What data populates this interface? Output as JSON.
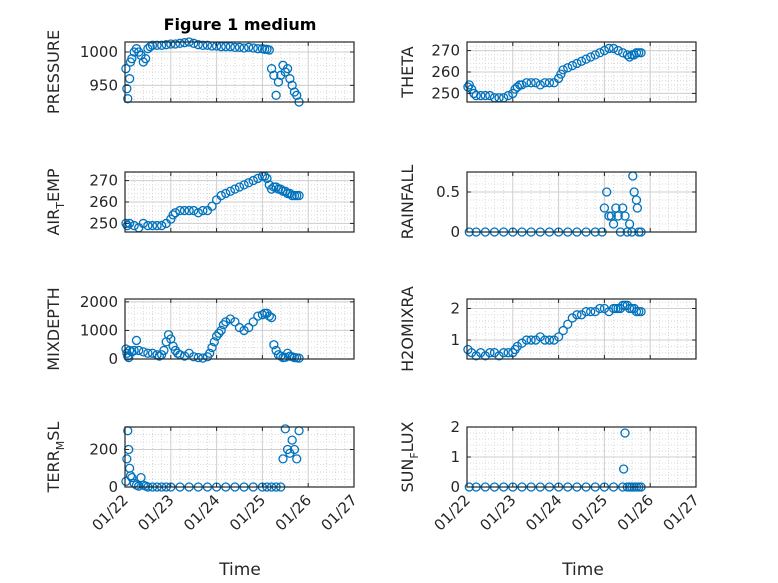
{
  "figure": {
    "title": "Figure 1 medium",
    "marker_color": "#0072bd"
  },
  "chart_data": [
    {
      "type": "scatter",
      "ylabel": "PRESSURE",
      "ylim": [
        925,
        1015
      ],
      "yticks": [
        950,
        1000
      ],
      "ytick_labels": [
        "950",
        "1000"
      ],
      "xlim": [
        0,
        5
      ],
      "x": [
        0.02,
        0.04,
        0.06,
        0.1,
        0.12,
        0.15,
        0.2,
        0.25,
        0.3,
        0.35,
        0.4,
        0.45,
        0.5,
        0.55,
        0.6,
        0.7,
        0.8,
        0.9,
        1.0,
        1.1,
        1.2,
        1.3,
        1.4,
        1.5,
        1.6,
        1.7,
        1.8,
        1.9,
        2.0,
        2.1,
        2.2,
        2.3,
        2.4,
        2.5,
        2.6,
        2.7,
        2.8,
        2.9,
        3.0,
        3.05,
        3.1,
        3.15,
        3.2,
        3.25,
        3.3,
        3.35,
        3.4,
        3.45,
        3.5,
        3.55,
        3.6,
        3.65,
        3.7,
        3.75,
        3.8
      ],
      "y": [
        975,
        945,
        930,
        960,
        985,
        990,
        1000,
        1005,
        1000,
        995,
        985,
        990,
        1005,
        1008,
        1010,
        1010,
        1010,
        1011,
        1012,
        1012,
        1013,
        1014,
        1015,
        1013,
        1011,
        1010,
        1010,
        1009,
        1009,
        1008,
        1008,
        1008,
        1007,
        1007,
        1006,
        1007,
        1006,
        1005,
        1005,
        1004,
        1004,
        1003,
        975,
        965,
        935,
        955,
        965,
        980,
        970,
        975,
        960,
        950,
        940,
        935,
        925
      ]
    },
    {
      "type": "scatter",
      "ylabel": "THETA",
      "ylim": [
        246,
        274
      ],
      "yticks": [
        250,
        260,
        270
      ],
      "ytick_labels": [
        "250",
        "260",
        "270"
      ],
      "xlim": [
        0,
        5
      ],
      "x": [
        0.02,
        0.05,
        0.1,
        0.15,
        0.2,
        0.3,
        0.4,
        0.5,
        0.6,
        0.7,
        0.8,
        0.9,
        1.0,
        1.05,
        1.1,
        1.15,
        1.2,
        1.3,
        1.4,
        1.5,
        1.6,
        1.7,
        1.8,
        1.9,
        2.0,
        2.05,
        2.1,
        2.2,
        2.3,
        2.4,
        2.5,
        2.6,
        2.7,
        2.8,
        2.9,
        3.0,
        3.1,
        3.2,
        3.3,
        3.4,
        3.5,
        3.55,
        3.6,
        3.65,
        3.7,
        3.75,
        3.8
      ],
      "y": [
        253,
        254,
        252,
        250,
        249,
        249,
        249,
        249,
        248,
        248,
        248,
        249,
        250,
        252,
        253,
        254,
        254,
        255,
        255,
        255,
        254,
        255,
        255,
        255,
        257,
        259,
        261,
        262,
        263,
        264,
        265,
        266,
        267,
        268,
        269,
        270,
        271,
        271,
        270,
        269,
        268,
        267,
        268,
        268,
        269,
        269,
        269
      ]
    },
    {
      "type": "scatter",
      "ylabel": "AIR_TEMP",
      "ylim": [
        246,
        274
      ],
      "yticks": [
        250,
        260,
        270
      ],
      "ytick_labels": [
        "250",
        "260",
        "270"
      ],
      "xlim": [
        0,
        5
      ],
      "x": [
        0.02,
        0.05,
        0.1,
        0.2,
        0.3,
        0.4,
        0.5,
        0.6,
        0.7,
        0.8,
        0.9,
        1.0,
        1.05,
        1.1,
        1.2,
        1.3,
        1.4,
        1.5,
        1.6,
        1.7,
        1.8,
        1.9,
        2.0,
        2.1,
        2.2,
        2.3,
        2.4,
        2.5,
        2.6,
        2.7,
        2.8,
        2.9,
        3.0,
        3.05,
        3.1,
        3.15,
        3.2,
        3.25,
        3.3,
        3.35,
        3.4,
        3.45,
        3.5,
        3.55,
        3.6,
        3.65,
        3.7,
        3.75,
        3.8
      ],
      "y": [
        250,
        249,
        250,
        249,
        248,
        250,
        249,
        249,
        249,
        249,
        250,
        252,
        254,
        255,
        256,
        256,
        256,
        256,
        255,
        256,
        256,
        258,
        261,
        263,
        264,
        265,
        266,
        267,
        268,
        269,
        270,
        271,
        272,
        272,
        271,
        268,
        266,
        267,
        267,
        266,
        266,
        265,
        265,
        264,
        264,
        263,
        263,
        263,
        263
      ]
    },
    {
      "type": "scatter",
      "ylabel": "RAINFALL",
      "ylim": [
        0,
        0.75
      ],
      "yticks": [
        0,
        0.5
      ],
      "ytick_labels": [
        "0",
        "0.5"
      ],
      "xlim": [
        0,
        5
      ],
      "x": [
        0.05,
        0.2,
        0.4,
        0.6,
        0.8,
        1.0,
        1.2,
        1.4,
        1.6,
        1.8,
        2.0,
        2.2,
        2.4,
        2.6,
        2.8,
        2.95,
        3.0,
        3.05,
        3.1,
        3.15,
        3.2,
        3.25,
        3.3,
        3.35,
        3.4,
        3.45,
        3.5,
        3.55,
        3.6,
        3.62,
        3.65,
        3.7,
        3.72,
        3.75,
        3.8
      ],
      "y": [
        0,
        0,
        0,
        0,
        0,
        0,
        0,
        0,
        0,
        0,
        0,
        0,
        0,
        0,
        0,
        0,
        0.3,
        0.5,
        0.2,
        0.2,
        0.1,
        0.3,
        0.2,
        0,
        0.3,
        0.2,
        0,
        0.1,
        0,
        0.7,
        0.5,
        0.4,
        0.3,
        0,
        0
      ]
    },
    {
      "type": "scatter",
      "ylabel": "MIXDEPTH",
      "ylim": [
        0,
        2100
      ],
      "yticks": [
        0,
        1000,
        2000
      ],
      "ytick_labels": [
        "0",
        "1000",
        "2000"
      ],
      "xlim": [
        0,
        5
      ],
      "x": [
        0.02,
        0.04,
        0.06,
        0.08,
        0.1,
        0.15,
        0.2,
        0.25,
        0.3,
        0.4,
        0.5,
        0.6,
        0.7,
        0.75,
        0.8,
        0.85,
        0.9,
        0.95,
        1.0,
        1.05,
        1.1,
        1.15,
        1.2,
        1.3,
        1.4,
        1.5,
        1.6,
        1.7,
        1.8,
        1.85,
        1.9,
        1.95,
        2.0,
        2.05,
        2.1,
        2.15,
        2.2,
        2.3,
        2.4,
        2.5,
        2.6,
        2.7,
        2.8,
        2.9,
        3.0,
        3.05,
        3.1,
        3.15,
        3.2,
        3.25,
        3.3,
        3.35,
        3.4,
        3.45,
        3.5,
        3.55,
        3.6,
        3.65,
        3.7,
        3.75,
        3.8
      ],
      "y": [
        350,
        200,
        100,
        50,
        300,
        250,
        300,
        650,
        300,
        250,
        200,
        200,
        150,
        100,
        150,
        300,
        600,
        850,
        700,
        450,
        300,
        200,
        150,
        100,
        200,
        80,
        50,
        30,
        80,
        200,
        400,
        600,
        800,
        900,
        1000,
        1200,
        1300,
        1400,
        1300,
        1100,
        1000,
        1100,
        1300,
        1500,
        1550,
        1600,
        1600,
        1500,
        1450,
        500,
        300,
        150,
        100,
        50,
        60,
        200,
        100,
        80,
        50,
        40,
        30
      ]
    },
    {
      "type": "scatter",
      "ylabel": "H2OMIXRA",
      "ylim": [
        0.4,
        2.3
      ],
      "yticks": [
        1,
        2
      ],
      "ytick_labels": [
        "1",
        "2"
      ],
      "xlim": [
        0,
        5
      ],
      "x": [
        0.02,
        0.1,
        0.2,
        0.3,
        0.4,
        0.5,
        0.6,
        0.7,
        0.8,
        0.9,
        1.0,
        1.05,
        1.1,
        1.2,
        1.3,
        1.4,
        1.5,
        1.6,
        1.7,
        1.8,
        1.9,
        2.0,
        2.1,
        2.2,
        2.3,
        2.4,
        2.5,
        2.6,
        2.7,
        2.8,
        2.9,
        3.0,
        3.1,
        3.2,
        3.25,
        3.3,
        3.35,
        3.4,
        3.45,
        3.5,
        3.55,
        3.6,
        3.65,
        3.7,
        3.75,
        3.8
      ],
      "y": [
        0.7,
        0.6,
        0.5,
        0.6,
        0.5,
        0.6,
        0.6,
        0.5,
        0.6,
        0.6,
        0.6,
        0.7,
        0.8,
        0.9,
        1.0,
        1.0,
        1.0,
        1.1,
        1.0,
        1.0,
        1.0,
        1.1,
        1.3,
        1.5,
        1.7,
        1.8,
        1.8,
        1.9,
        1.9,
        1.9,
        2.0,
        2.0,
        1.9,
        2.0,
        2.0,
        2.0,
        2.0,
        2.1,
        2.1,
        2.1,
        2.0,
        2.0,
        2.0,
        1.9,
        1.9,
        1.9
      ]
    },
    {
      "type": "scatter",
      "ylabel": "TERR_MSL",
      "ylim": [
        0,
        320
      ],
      "yticks": [
        0,
        200
      ],
      "ytick_labels": [
        "0",
        "200"
      ],
      "xlim": [
        0,
        5
      ],
      "x": [
        0.02,
        0.04,
        0.06,
        0.08,
        0.1,
        0.12,
        0.15,
        0.2,
        0.25,
        0.3,
        0.35,
        0.4,
        0.45,
        0.5,
        0.6,
        0.7,
        0.8,
        0.9,
        1.0,
        1.2,
        1.4,
        1.6,
        1.8,
        2.0,
        2.2,
        2.4,
        2.6,
        2.8,
        3.0,
        3.1,
        3.2,
        3.3,
        3.4,
        3.45,
        3.5,
        3.55,
        3.6,
        3.65,
        3.7,
        3.75,
        3.8
      ],
      "y": [
        30,
        150,
        300,
        200,
        100,
        60,
        50,
        20,
        10,
        5,
        50,
        10,
        5,
        0,
        0,
        0,
        0,
        0,
        0,
        0,
        0,
        0,
        0,
        0,
        0,
        0,
        0,
        0,
        0,
        0,
        0,
        0,
        0,
        150,
        310,
        200,
        180,
        250,
        200,
        150,
        300
      ]
    },
    {
      "type": "scatter",
      "ylabel": "SUN_FLUX",
      "ylim": [
        0,
        2
      ],
      "yticks": [
        0,
        1,
        2
      ],
      "ytick_labels": [
        "0",
        "1",
        "2"
      ],
      "xlim": [
        0,
        5
      ],
      "x": [
        0.05,
        0.2,
        0.4,
        0.6,
        0.8,
        1.0,
        1.2,
        1.4,
        1.6,
        1.8,
        2.0,
        2.2,
        2.4,
        2.6,
        2.8,
        3.0,
        3.2,
        3.4,
        3.42,
        3.45,
        3.5,
        3.55,
        3.6,
        3.65,
        3.7,
        3.75,
        3.8
      ],
      "y": [
        0,
        0,
        0,
        0,
        0,
        0,
        0,
        0,
        0,
        0,
        0,
        0,
        0,
        0,
        0,
        0,
        0,
        0,
        0.6,
        1.8,
        0,
        0,
        0,
        0,
        0,
        0,
        0
      ]
    }
  ],
  "panels": [
    {
      "ylabel_main": "PRESSURE",
      "ylabel_sub": "",
      "ylabel_tail": ""
    },
    {
      "ylabel_main": "THETA",
      "ylabel_sub": "",
      "ylabel_tail": ""
    },
    {
      "ylabel_main": "AIR",
      "ylabel_sub": "T",
      "ylabel_tail": "EMP"
    },
    {
      "ylabel_main": "RAINFALL",
      "ylabel_sub": "",
      "ylabel_tail": ""
    },
    {
      "ylabel_main": "MIXDEPTH",
      "ylabel_sub": "",
      "ylabel_tail": ""
    },
    {
      "ylabel_main": "H2OMIXRA",
      "ylabel_sub": "",
      "ylabel_tail": ""
    },
    {
      "ylabel_main": "TERR",
      "ylabel_sub": "M",
      "ylabel_tail": "SL"
    },
    {
      "ylabel_main": "SUN",
      "ylabel_sub": "F",
      "ylabel_tail": "LUX"
    }
  ],
  "x_axis": {
    "tick_values": [
      0,
      1,
      2,
      3,
      4,
      5
    ],
    "tick_labels": [
      "01/22",
      "01/23",
      "01/24",
      "01/25",
      "01/26",
      "01/27"
    ],
    "label": "Time"
  }
}
